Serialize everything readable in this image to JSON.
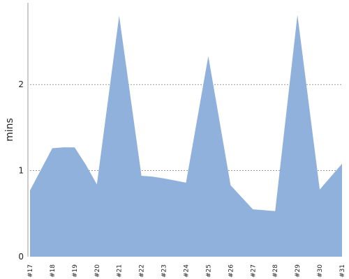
{
  "chart_data": {
    "type": "area",
    "title": "",
    "xlabel": "",
    "ylabel": "mins",
    "x": [
      "#17",
      "#18",
      "#19",
      "#20",
      "#21",
      "#22",
      "#23",
      "#24",
      "#25",
      "#26",
      "#27",
      "#28",
      "#29",
      "#30",
      "#31"
    ],
    "series": [
      {
        "name": "",
        "points": [
          {
            "x": 17.0,
            "y": 0.77
          },
          {
            "x": 18.0,
            "y": 1.26
          },
          {
            "x": 18.5,
            "y": 1.27
          },
          {
            "x": 19.0,
            "y": 1.27
          },
          {
            "x": 19.5,
            "y": 1.07
          },
          {
            "x": 20.0,
            "y": 0.84
          },
          {
            "x": 21.0,
            "y": 2.8
          },
          {
            "x": 22.0,
            "y": 0.94
          },
          {
            "x": 22.5,
            "y": 0.93
          },
          {
            "x": 23.0,
            "y": 0.91
          },
          {
            "x": 24.0,
            "y": 0.86
          },
          {
            "x": 25.0,
            "y": 2.33
          },
          {
            "x": 26.0,
            "y": 0.83
          },
          {
            "x": 27.0,
            "y": 0.55
          },
          {
            "x": 28.0,
            "y": 0.53
          },
          {
            "x": 29.0,
            "y": 2.81
          },
          {
            "x": 30.0,
            "y": 0.78
          },
          {
            "x": 31.0,
            "y": 1.08
          }
        ]
      }
    ],
    "yticks": [
      0,
      1,
      2
    ],
    "ylim": [
      0,
      2.95
    ],
    "grid": "horizontal dashed at 1 and 2",
    "legend": "none",
    "colors": {
      "fill": "#8fb1db",
      "grid": "#777777",
      "axis": "#999999",
      "text": "#222222"
    }
  }
}
